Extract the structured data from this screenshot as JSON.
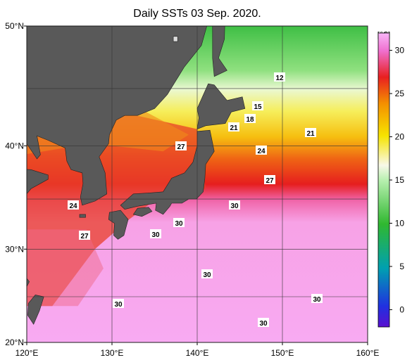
{
  "title": "Daily SSTs 03 Sep. 2020.",
  "map": {
    "lonlim": [
      120,
      160
    ],
    "latlim": [
      20,
      50
    ],
    "lon_ticks": [
      {
        "value": 120,
        "label": "120°E"
      },
      {
        "value": 130,
        "label": "130°E"
      },
      {
        "value": 140,
        "label": "140°E"
      },
      {
        "value": 150,
        "label": "150°E"
      },
      {
        "value": 160,
        "label": "160°E"
      }
    ],
    "lat_ticks": [
      {
        "value": 20,
        "label": "20°N"
      },
      {
        "value": 30,
        "label": "30°N"
      },
      {
        "value": 40,
        "label": "40°N"
      },
      {
        "value": 50,
        "label": "50°N"
      }
    ],
    "contour_labels": [
      12,
      15,
      18,
      21,
      21,
      27,
      24,
      27,
      24,
      30,
      30,
      30,
      27,
      30,
      30,
      30,
      30
    ]
  },
  "colorbar": {
    "unit": "[℃]",
    "range": [
      -2,
      32
    ],
    "ticks": [
      0,
      5,
      10,
      15,
      20,
      25,
      30
    ]
  }
}
